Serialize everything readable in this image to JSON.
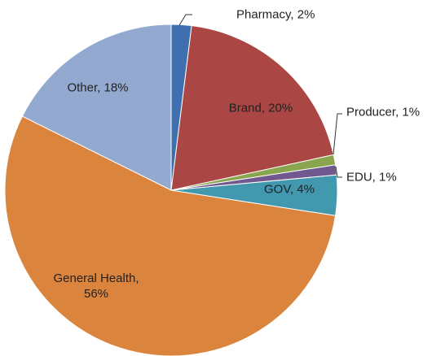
{
  "chart_data": {
    "type": "pie",
    "values": [
      2,
      20,
      1,
      1,
      4,
      56,
      18
    ],
    "value_labels": [
      "Pharmacy, 2%",
      "Brand, 20%",
      "Producer, 1%",
      "EDU, 1%",
      "GOV, 4%",
      "General Health, 56%",
      "Other, 18%"
    ],
    "colors": [
      "#3e6faf",
      "#aa4643",
      "#89a54e",
      "#71588f",
      "#4198af",
      "#db843d",
      "#93a9cf"
    ]
  }
}
